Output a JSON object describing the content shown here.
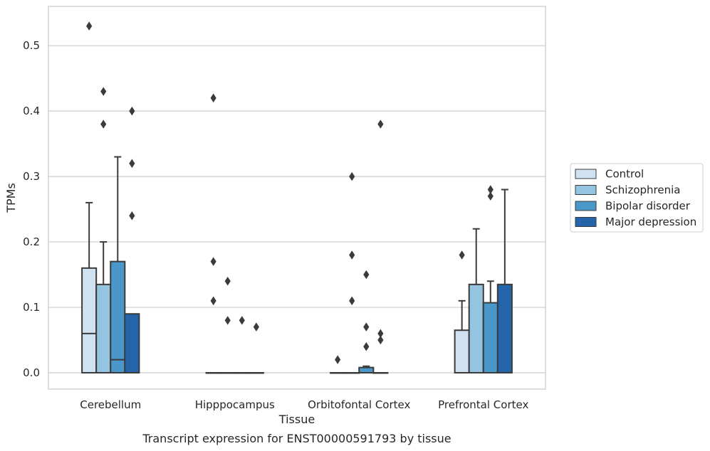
{
  "chart_data": {
    "type": "box",
    "xlabel": "Tissue",
    "ylabel": "TPMs",
    "caption": "Transcript expression for ENST00000591793 by tissue",
    "ylim": [
      -0.025,
      0.56
    ],
    "yticks": [
      0.0,
      0.1,
      0.2,
      0.3,
      0.4,
      0.5
    ],
    "ytick_labels": [
      "0.0",
      "0.1",
      "0.2",
      "0.3",
      "0.4",
      "0.5"
    ],
    "grid": "horizontal",
    "legend_position": "right",
    "categories": [
      "Cerebellum",
      "Hipppocampus",
      "Orbitofontal Cortex",
      "Prefrontal Cortex"
    ],
    "series": [
      {
        "name": "Control",
        "color": "#d0e1f2",
        "boxes": [
          {
            "q1": 0.0,
            "median": 0.06,
            "q3": 0.16,
            "whisker_low": 0.0,
            "whisker_high": 0.26,
            "outliers": [
              0.53
            ]
          },
          {
            "q1": 0.0,
            "median": 0.0,
            "q3": 0.0,
            "whisker_low": 0.0,
            "whisker_high": 0.0,
            "outliers": [
              0.42,
              0.17,
              0.11
            ]
          },
          {
            "q1": 0.0,
            "median": 0.0,
            "q3": 0.0,
            "whisker_low": 0.0,
            "whisker_high": 0.0,
            "outliers": [
              0.02
            ]
          },
          {
            "q1": 0.0,
            "median": 0.0,
            "q3": 0.065,
            "whisker_low": 0.0,
            "whisker_high": 0.11,
            "outliers": [
              0.18
            ]
          }
        ]
      },
      {
        "name": "Schizophrenia",
        "color": "#94c4df",
        "boxes": [
          {
            "q1": 0.0,
            "median": 0.0,
            "q3": 0.135,
            "whisker_low": 0.0,
            "whisker_high": 0.2,
            "outliers": [
              0.43,
              0.38
            ]
          },
          {
            "q1": 0.0,
            "median": 0.0,
            "q3": 0.0,
            "whisker_low": 0.0,
            "whisker_high": 0.0,
            "outliers": [
              0.14,
              0.08
            ]
          },
          {
            "q1": 0.0,
            "median": 0.0,
            "q3": 0.0,
            "whisker_low": 0.0,
            "whisker_high": 0.0,
            "outliers": [
              0.3,
              0.18,
              0.11
            ]
          },
          {
            "q1": 0.0,
            "median": 0.0,
            "q3": 0.135,
            "whisker_low": 0.0,
            "whisker_high": 0.22,
            "outliers": []
          }
        ]
      },
      {
        "name": "Bipolar disorder",
        "color": "#4a98c9",
        "boxes": [
          {
            "q1": 0.0,
            "median": 0.02,
            "q3": 0.17,
            "whisker_low": 0.0,
            "whisker_high": 0.33,
            "outliers": []
          },
          {
            "q1": 0.0,
            "median": 0.0,
            "q3": 0.0,
            "whisker_low": 0.0,
            "whisker_high": 0.0,
            "outliers": [
              0.08
            ]
          },
          {
            "q1": 0.0,
            "median": 0.0,
            "q3": 0.008,
            "whisker_low": 0.0,
            "whisker_high": 0.01,
            "outliers": [
              0.15,
              0.07,
              0.04
            ]
          },
          {
            "q1": 0.0,
            "median": 0.0,
            "q3": 0.107,
            "whisker_low": 0.0,
            "whisker_high": 0.14,
            "outliers": [
              0.28,
              0.27
            ]
          }
        ]
      },
      {
        "name": "Major depression",
        "color": "#2464ab",
        "boxes": [
          {
            "q1": 0.0,
            "median": 0.0,
            "q3": 0.09,
            "whisker_low": 0.0,
            "whisker_high": 0.09,
            "outliers": [
              0.4,
              0.32,
              0.24
            ]
          },
          {
            "q1": 0.0,
            "median": 0.0,
            "q3": 0.0,
            "whisker_low": 0.0,
            "whisker_high": 0.0,
            "outliers": [
              0.07
            ]
          },
          {
            "q1": 0.0,
            "median": 0.0,
            "q3": 0.0,
            "whisker_low": 0.0,
            "whisker_high": 0.0,
            "outliers": [
              0.38,
              0.06,
              0.05
            ]
          },
          {
            "q1": 0.0,
            "median": 0.0,
            "q3": 0.135,
            "whisker_low": 0.0,
            "whisker_high": 0.28,
            "outliers": []
          }
        ]
      }
    ]
  }
}
